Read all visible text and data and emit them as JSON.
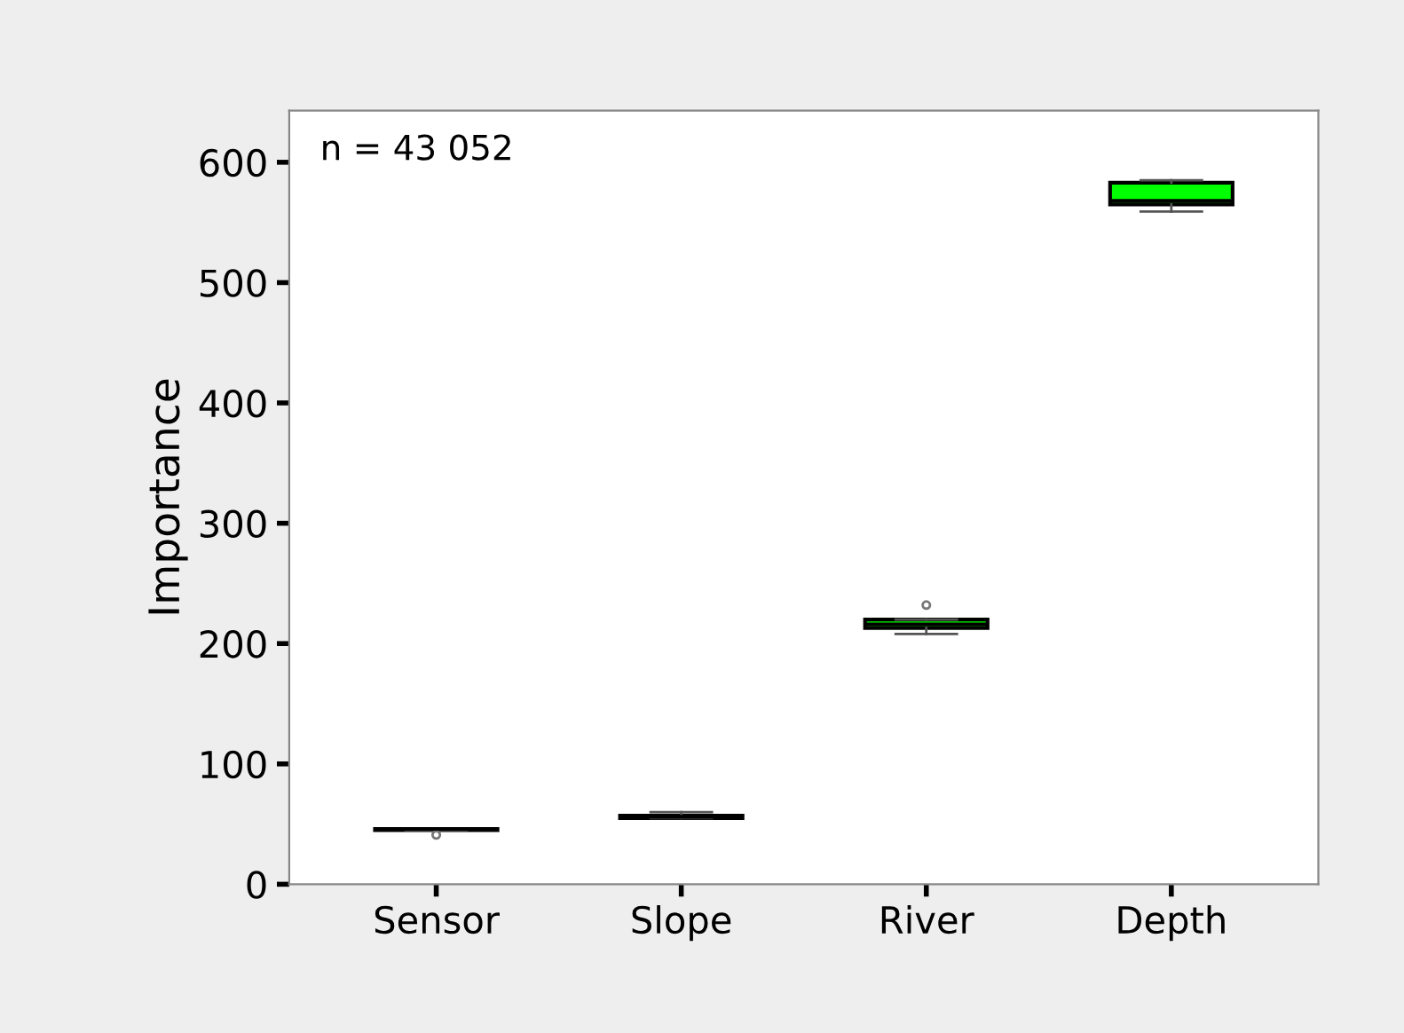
{
  "chart_data": {
    "type": "box",
    "ylabel": "Importance",
    "categories": [
      "Sensor",
      "Slope",
      "River",
      "Depth"
    ],
    "boxes": [
      {
        "low": 45,
        "q1": 45,
        "median": 46,
        "q3": 46,
        "high": 46,
        "outliers": [
          41
        ]
      },
      {
        "low": 55,
        "q1": 55,
        "median": 56,
        "q3": 57,
        "high": 60
      },
      {
        "low": 208,
        "q1": 213,
        "median": 216,
        "q3": 220,
        "high": 220,
        "outliers": [
          232
        ]
      },
      {
        "low": 559,
        "q1": 565,
        "median": 568,
        "q3": 583,
        "high": 585
      }
    ],
    "colors": [
      "#00ff00",
      "#00ff00",
      "#00ff00",
      "#00ff00"
    ],
    "ylim": [
      0,
      643
    ],
    "yticks": [
      0,
      100,
      200,
      300,
      400,
      500,
      600
    ],
    "grid": false,
    "annotations": [
      "n = 43 052"
    ]
  }
}
